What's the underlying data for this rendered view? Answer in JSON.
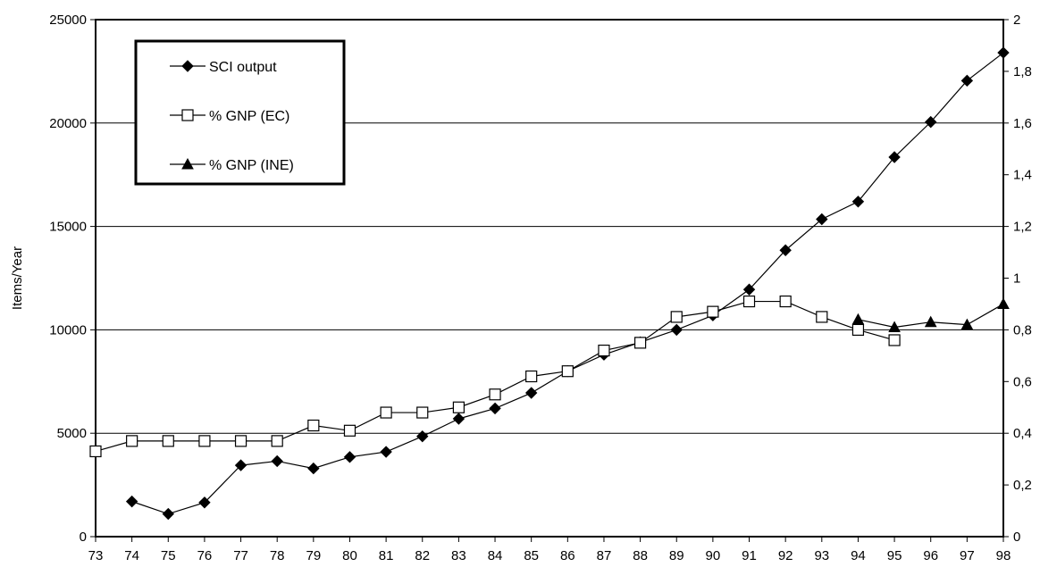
{
  "chart_data": {
    "type": "line",
    "title": "",
    "xlabel": "",
    "ylabel": "Items/Year",
    "y2label": "",
    "categories": [
      "73",
      "74",
      "75",
      "76",
      "77",
      "78",
      "79",
      "80",
      "81",
      "82",
      "83",
      "84",
      "85",
      "86",
      "87",
      "88",
      "89",
      "90",
      "91",
      "92",
      "93",
      "94",
      "95",
      "96",
      "97",
      "98"
    ],
    "ylim": [
      0,
      25000
    ],
    "y2lim": [
      0,
      2
    ],
    "yticks": [
      "0",
      "5000",
      "10000",
      "15000",
      "20000",
      "25000"
    ],
    "y2ticks": [
      "0",
      "0,2",
      "0,4",
      "0,6",
      "0,8",
      "1",
      "1,2",
      "1,4",
      "1,6",
      "1,8",
      "2"
    ],
    "grid": "horizontal",
    "legend_position": "top-left",
    "series": [
      {
        "name": "SCI output",
        "axis": "left",
        "marker": "diamond-filled",
        "values": [
          null,
          1700,
          1100,
          1650,
          3450,
          3650,
          3300,
          3850,
          4100,
          4850,
          5700,
          6200,
          6950,
          8000,
          8800,
          9400,
          10000,
          10700,
          11950,
          13850,
          15350,
          16200,
          18350,
          20050,
          22050,
          23400
        ]
      },
      {
        "name": "% GNP (EC)",
        "axis": "right",
        "marker": "square-open",
        "values": [
          0.33,
          0.37,
          0.37,
          0.37,
          0.37,
          0.37,
          0.43,
          0.41,
          0.48,
          0.48,
          0.5,
          0.55,
          0.62,
          0.64,
          0.72,
          0.75,
          0.85,
          0.87,
          0.91,
          0.91,
          0.85,
          0.8,
          0.76,
          null,
          null,
          null
        ]
      },
      {
        "name": "% GNP (INE)",
        "axis": "right",
        "marker": "triangle-filled",
        "values": [
          null,
          null,
          null,
          null,
          null,
          null,
          null,
          null,
          null,
          null,
          null,
          null,
          null,
          null,
          null,
          null,
          null,
          null,
          null,
          null,
          null,
          0.84,
          0.81,
          0.83,
          0.82,
          0.9
        ]
      }
    ]
  }
}
